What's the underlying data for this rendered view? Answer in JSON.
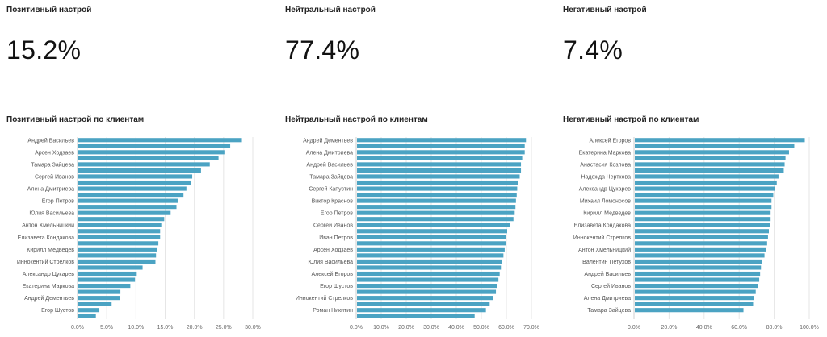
{
  "kpis": [
    {
      "title": "Позитивный настрой",
      "value": "15.2%"
    },
    {
      "title": "Нейтральный настрой",
      "value": "77.4%"
    },
    {
      "title": "Негативный настрой",
      "value": "7.4%"
    }
  ],
  "chart_data": [
    {
      "type": "bar",
      "orientation": "horizontal",
      "title": "Позитивный настрой по клиентам",
      "categories": [
        "Андрей Васильев",
        "",
        "Арсен Ходзаев",
        "",
        "Тамара Зайцева",
        "",
        "Сергей Иванов",
        "",
        "Алена Дмитриева",
        "",
        "Егор Петров",
        "",
        "Юлия Васильева",
        "",
        "Антон Хмельницкий",
        "",
        "Елизавета Кондакова",
        "",
        "Кирилл Медведев",
        "",
        "Иннокентий Стрелков",
        "",
        "Александр Цукарев",
        "",
        "Екатерина Маркова",
        "",
        "Андрей Дементьев",
        "",
        "Егор Шустов",
        ""
      ],
      "values": [
        28.0,
        26.0,
        25.0,
        24.0,
        22.5,
        21.0,
        19.5,
        19.3,
        18.5,
        18.0,
        17.0,
        16.8,
        15.8,
        14.7,
        14.2,
        14.0,
        14.0,
        13.7,
        13.5,
        13.3,
        13.2,
        11.0,
        10.0,
        9.7,
        8.9,
        7.2,
        7.1,
        5.7,
        3.6,
        3.0
      ],
      "xticks": [
        "0.0%",
        "5.0%",
        "10.0%",
        "15.0%",
        "20.0%",
        "25.0%",
        "30.0%"
      ],
      "xlim": [
        0,
        30
      ]
    },
    {
      "type": "bar",
      "orientation": "horizontal",
      "title": "Нейтральный настрой по клиентам",
      "categories": [
        "Андрей Дементьев",
        "",
        "Алена Дмитриева",
        "",
        "Андрей Васильев",
        "",
        "Тамара Зайцева",
        "",
        "Сергей Капустин",
        "",
        "Виктор Краснов",
        "",
        "Егор Петров",
        "",
        "Сергей Иванов",
        "",
        "Иван Петров",
        "",
        "Арсен Ходзаев",
        "",
        "Юлия Васильева",
        "",
        "Алексей Егоров",
        "",
        "Егор Шустов",
        "",
        "Иннокентий Стрелков",
        "",
        "Роман Никитин",
        ""
      ],
      "values": [
        67.5,
        67.0,
        67.0,
        66.0,
        65.5,
        65.5,
        65.0,
        64.5,
        64.0,
        63.8,
        63.5,
        63.3,
        63.0,
        62.5,
        61.0,
        60.0,
        59.5,
        59.5,
        59.0,
        58.5,
        58.0,
        57.5,
        57.0,
        56.5,
        56.0,
        55.5,
        54.5,
        53.0,
        51.5,
        47.0
      ],
      "xticks": [
        "0.0%",
        "10.0%",
        "20.0%",
        "30.0%",
        "40.0%",
        "50.0%",
        "60.0%",
        "70.0%"
      ],
      "xlim": [
        0,
        70
      ]
    },
    {
      "type": "bar",
      "orientation": "horizontal",
      "title": "Негативный настрой по клиентам",
      "categories": [
        "Алексей Егоров",
        "",
        "Екатерина Маркова",
        "",
        "Анастасия Козлова",
        "",
        "Надежда Черткова",
        "",
        "Александр Цукарев",
        "",
        "Михаил Ломоносов",
        "",
        "Кирилл Медведев",
        "",
        "Елизавета Кондакова",
        "",
        "Иннокентий Стрелков",
        "",
        "Антон Хмельницкий",
        "",
        "Валентин Петухов",
        "",
        "Андрей Васильев",
        "",
        "Сергей Иванов",
        "",
        "Алена Дмитриева",
        "",
        "Тамара Зайцева",
        ""
      ],
      "values": [
        97.0,
        91.0,
        88.0,
        86.0,
        85.5,
        85.0,
        82.0,
        81.0,
        80.0,
        79.0,
        78.0,
        78.0,
        77.5,
        77.5,
        77.0,
        76.5,
        76.0,
        75.5,
        75.0,
        74.0,
        72.5,
        72.0,
        71.5,
        71.0,
        70.5,
        69.0,
        68.0,
        67.5,
        62.0,
        0
      ],
      "xticks": [
        "0.0%",
        "20.0%",
        "40.0%",
        "60.0%",
        "80.0%",
        "100.0%"
      ],
      "xlim": [
        0,
        100
      ]
    }
  ]
}
